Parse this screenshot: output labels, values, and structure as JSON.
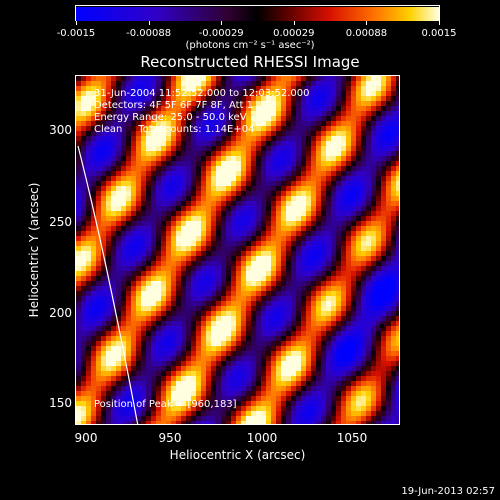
{
  "colorbar": {
    "ticks": [
      "-0.0015",
      "-0.00088",
      "-0.00029",
      "0.00029",
      "0.00088",
      "0.0015"
    ],
    "units": "(photons cm⁻² s⁻¹ asec⁻²)"
  },
  "title": "Reconstructed RHESSI Image",
  "info_lines": {
    "line1": "31-Jun-2004 11:52:52.000 to 12:03:52.000",
    "line2": "Detectors: 4F 5F 6F 7F 8F, Att 1",
    "line3": "Energy Range: 25.0 - 50.0 keV",
    "line4": "Clean     Total counts: 1.14E+04"
  },
  "peak_text": "Position of Peak = [960,183]",
  "axes": {
    "xlabel": "Heliocentric X (arcsec)",
    "ylabel": "Heliocentric Y (arcsec)",
    "xticks": [
      "900",
      "950",
      "1000",
      "1050"
    ],
    "yticks": [
      "300",
      "250",
      "200",
      "150"
    ]
  },
  "timestamp": "19-Jun-2013 02:57",
  "colors": {
    "background": "#000000",
    "text": "#ffffff"
  }
}
